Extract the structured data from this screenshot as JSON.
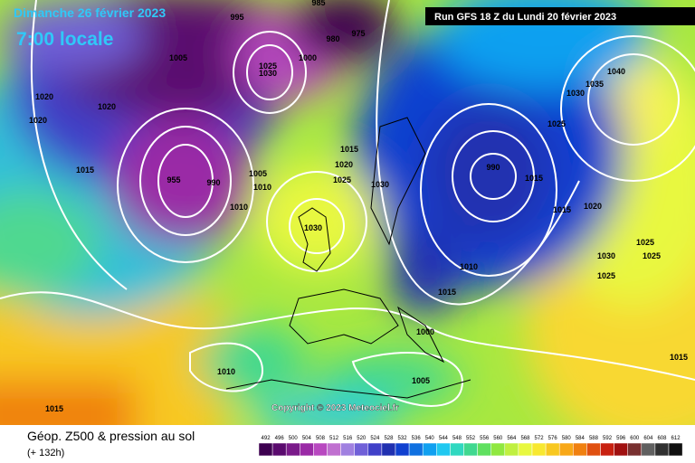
{
  "header": {
    "date": "Dimanche 26 février 2023",
    "time": "7:00 locale",
    "run": "Run GFS 18 Z du Lundi 20 février 2023"
  },
  "copyright": "Copyright © 2023 Meteociel.fr",
  "footer": {
    "title": "Géop. Z500 & pression au sol",
    "lead": "(+ 132h)"
  },
  "legend": {
    "labels": [
      492,
      496,
      500,
      504,
      508,
      512,
      516,
      520,
      524,
      528,
      532,
      536,
      540,
      544,
      548,
      552,
      556,
      560,
      564,
      568,
      572,
      576,
      580,
      584,
      588,
      592,
      596,
      600,
      604,
      608,
      612
    ],
    "colors": [
      "#3d0050",
      "#5a0a6e",
      "#7a1a8a",
      "#9a2aa6",
      "#b848c0",
      "#c070d0",
      "#a080e0",
      "#7060d8",
      "#4040c8",
      "#2030b0",
      "#1040d0",
      "#1070e0",
      "#10a0f0",
      "#20c8f0",
      "#30d8c0",
      "#40d890",
      "#60e060",
      "#90e840",
      "#c0f040",
      "#e8f840",
      "#f8e830",
      "#f8c820",
      "#f8a818",
      "#f08010",
      "#e05010",
      "#c82010",
      "#a01010",
      "#783030",
      "#606060",
      "#303030",
      "#101010"
    ]
  },
  "isobars": [
    "995",
    "985",
    "980",
    "975",
    "1005",
    "1000",
    "1025",
    "1030",
    "1020",
    "1020",
    "1020",
    "1015",
    "955",
    "990",
    "1005",
    "1010",
    "1010",
    "1015",
    "1020",
    "1025",
    "1030",
    "1030",
    "990",
    "1015",
    "1040",
    "1035",
    "1030",
    "1025",
    "1015",
    "1020",
    "1025",
    "1030",
    "1025",
    "1025",
    "1010",
    "1015",
    "1000",
    "1005",
    "1010",
    "1015",
    "1015"
  ]
}
